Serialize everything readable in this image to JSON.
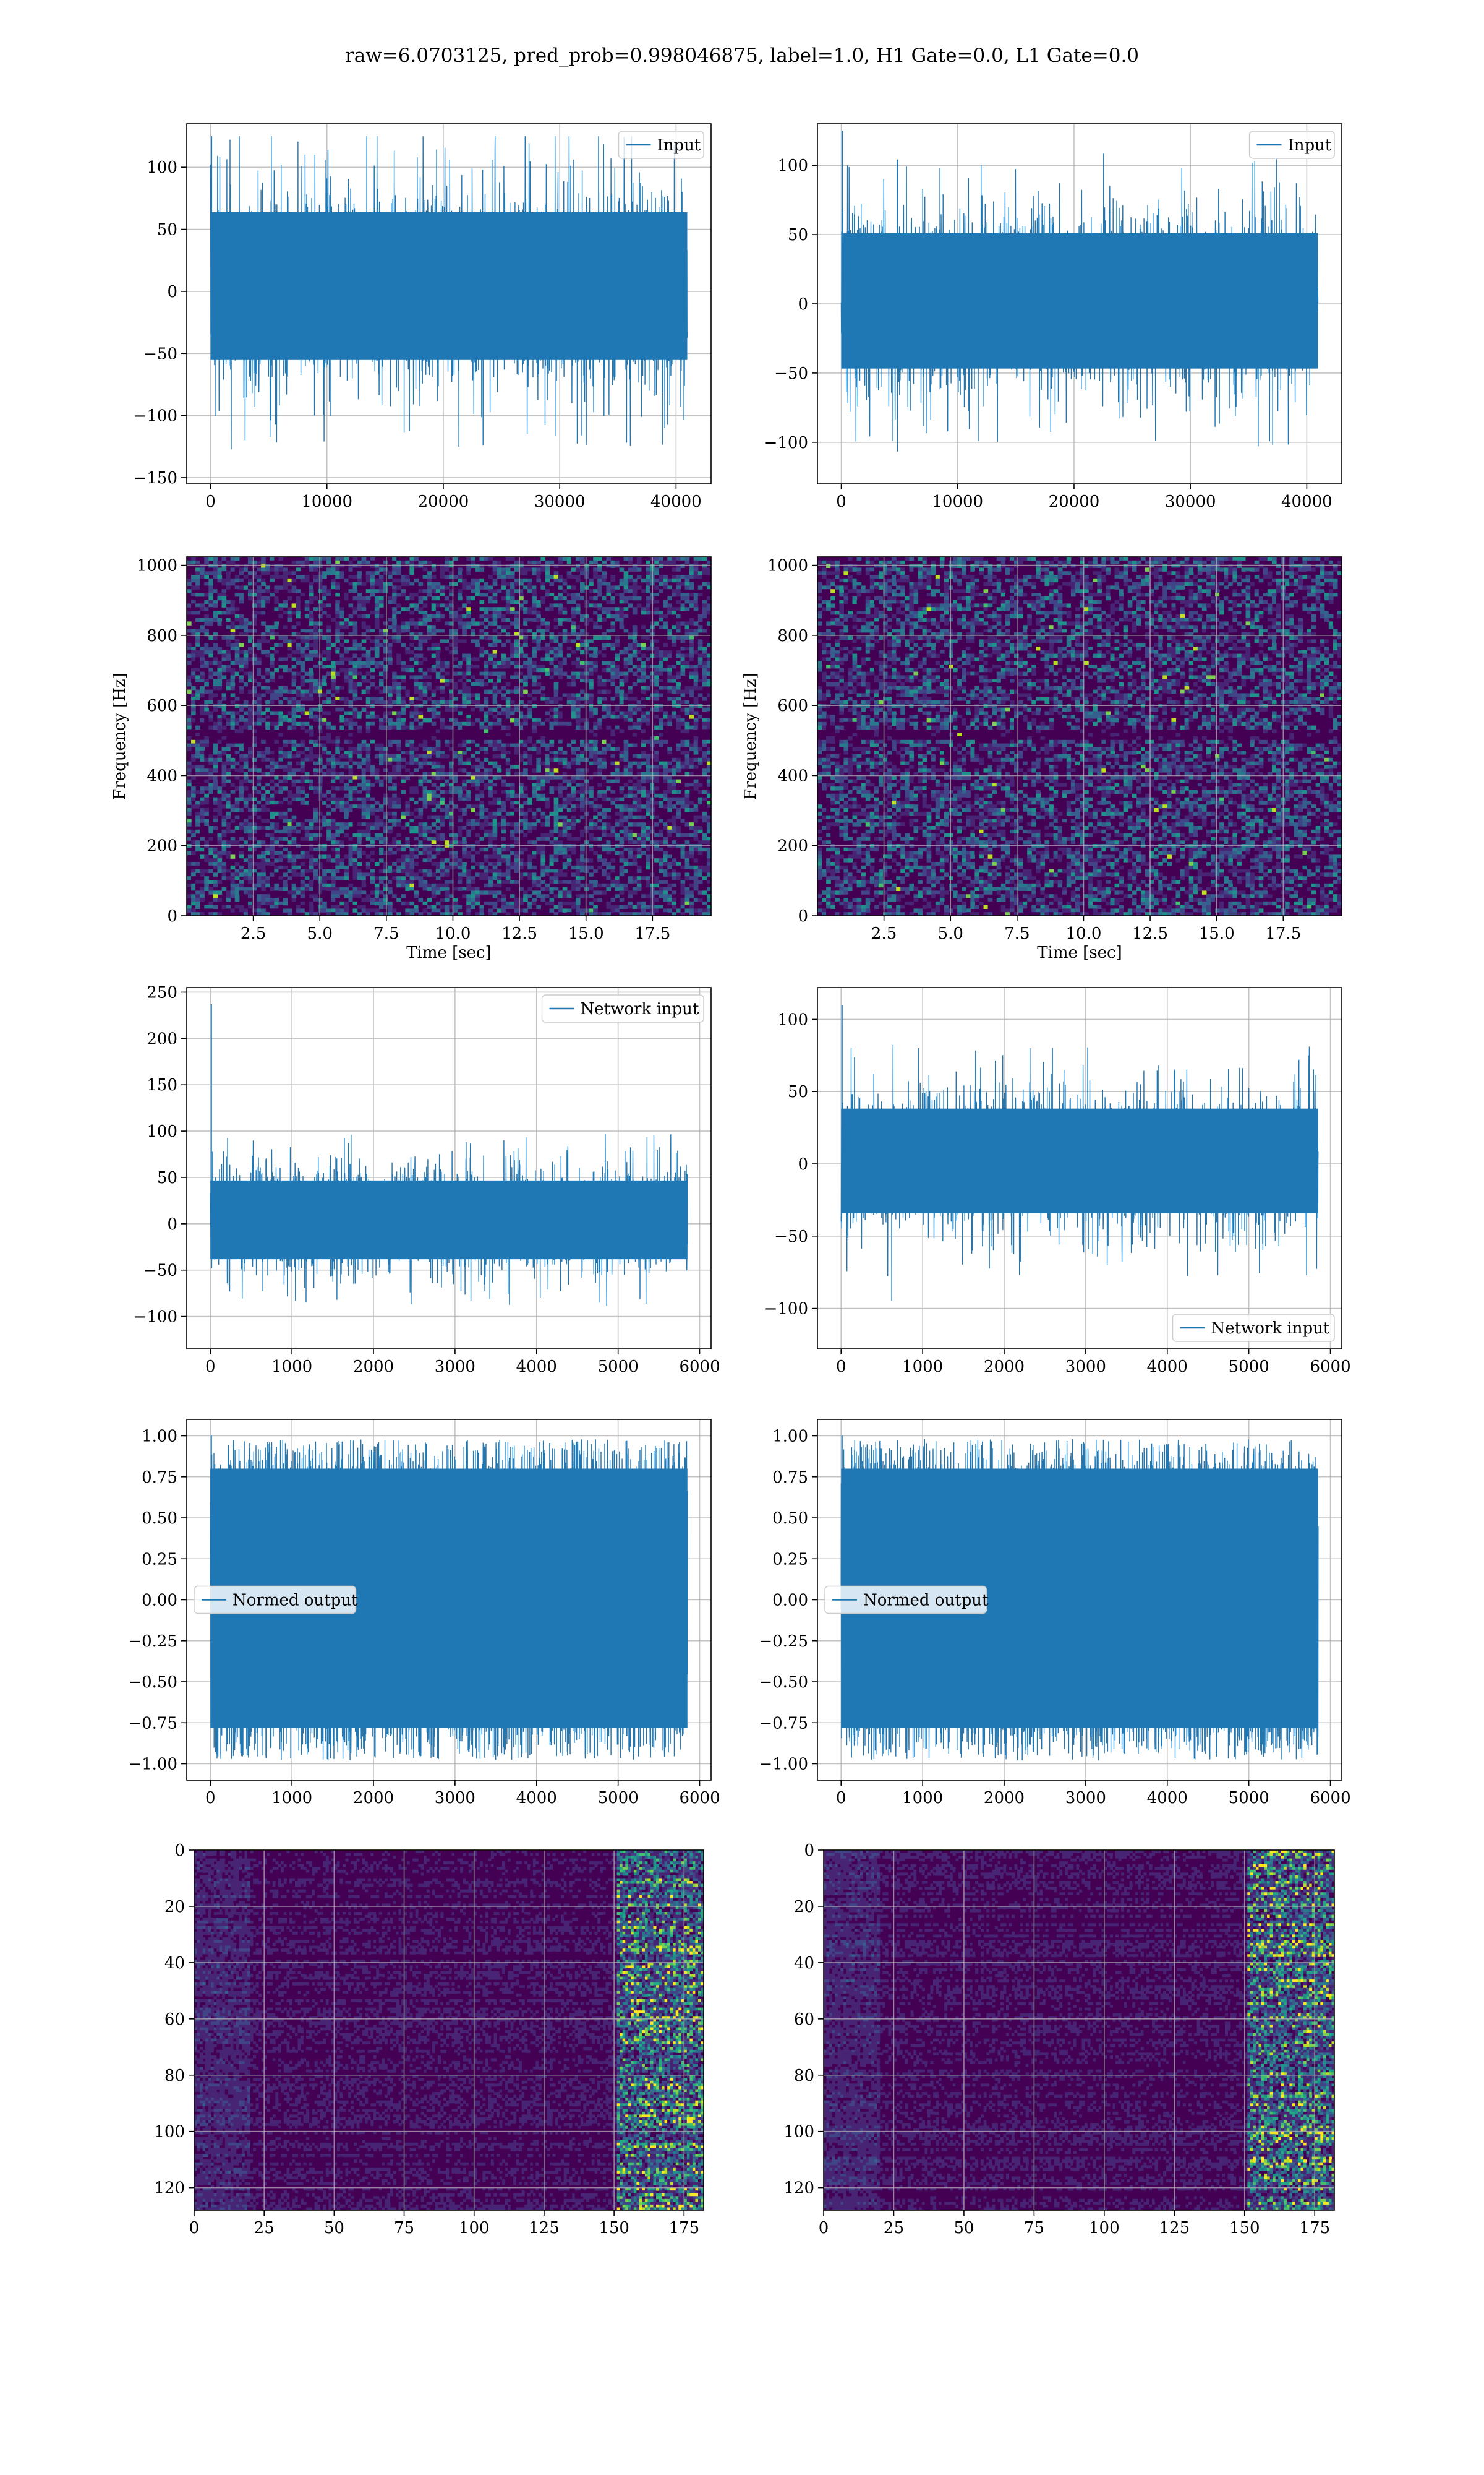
{
  "figure": {
    "suptitle": "raw=6.0703125, pred_prob=0.998046875, label=1.0, H1 Gate=0.0, L1 Gate=0.0"
  },
  "colors": {
    "line": "#1f77b4",
    "grid": "#b0b0b0",
    "viridis": [
      "#440154",
      "#482475",
      "#414487",
      "#355f8d",
      "#2a788e",
      "#21918c",
      "#22a884",
      "#44bf70",
      "#7ad151",
      "#bddf26",
      "#fde725"
    ]
  },
  "chart_data": [
    {
      "id": "input_left",
      "type": "line",
      "legend": [
        "Input"
      ],
      "legend_loc": "upper right",
      "xlim": [
        -2048,
        43008
      ],
      "ylim": [
        -155,
        135
      ],
      "xticks": [
        0,
        10000,
        20000,
        30000,
        40000
      ],
      "yticks": [
        -150,
        -100,
        -50,
        0,
        50,
        100
      ],
      "series": [
        {
          "name": "Input",
          "n_samples": 40960,
          "x_range": [
            0,
            40960
          ],
          "band": [
            -65,
            75
          ],
          "peaks": [
            -145,
            125
          ]
        }
      ],
      "grid": true
    },
    {
      "id": "input_right",
      "type": "line",
      "legend": [
        "Input"
      ],
      "legend_loc": "upper right",
      "xlim": [
        -2048,
        43008
      ],
      "ylim": [
        -130,
        130
      ],
      "xticks": [
        0,
        10000,
        20000,
        30000,
        40000
      ],
      "yticks": [
        -100,
        -50,
        0,
        50,
        100
      ],
      "series": [
        {
          "name": "Input",
          "n_samples": 40960,
          "x_range": [
            0,
            40960
          ],
          "band": [
            -55,
            60
          ],
          "peaks": [
            -115,
            125
          ]
        }
      ],
      "grid": true
    },
    {
      "id": "spectrogram_left",
      "type": "heatmap",
      "xlabel": "Time [sec]",
      "ylabel": "Frequency [Hz]",
      "xlim": [
        0,
        19.7
      ],
      "ylim": [
        0,
        1024
      ],
      "xticks": [
        2.5,
        5.0,
        7.5,
        10.0,
        12.5,
        15.0,
        17.5
      ],
      "yticks": [
        0,
        200,
        400,
        600,
        800,
        1000
      ],
      "colormap": "viridis",
      "note_band_hz": 510,
      "grid": true
    },
    {
      "id": "spectrogram_right",
      "type": "heatmap",
      "xlabel": "Time [sec]",
      "ylabel": "Frequency [Hz]",
      "xlim": [
        0,
        19.7
      ],
      "ylim": [
        0,
        1024
      ],
      "xticks": [
        2.5,
        5.0,
        7.5,
        10.0,
        12.5,
        15.0,
        17.5
      ],
      "yticks": [
        0,
        200,
        400,
        600,
        800,
        1000
      ],
      "colormap": "viridis",
      "note_band_hz": 510,
      "grid": true
    },
    {
      "id": "network_input_left",
      "type": "line",
      "legend": [
        "Network input"
      ],
      "legend_loc": "upper right",
      "xlim": [
        -290,
        6140
      ],
      "ylim": [
        -135,
        255
      ],
      "xticks": [
        0,
        1000,
        2000,
        3000,
        4000,
        5000,
        6000
      ],
      "yticks": [
        -100,
        -50,
        0,
        50,
        100,
        150,
        200,
        250
      ],
      "series": [
        {
          "name": "Network input",
          "n_samples": 5850,
          "x_range": [
            0,
            5850
          ],
          "band": [
            -45,
            55
          ],
          "peaks": [
            -115,
            237
          ]
        }
      ],
      "grid": true
    },
    {
      "id": "network_input_right",
      "type": "line",
      "legend": [
        "Network input"
      ],
      "legend_loc": "lower right",
      "xlim": [
        -290,
        6140
      ],
      "ylim": [
        -128,
        122
      ],
      "xticks": [
        0,
        1000,
        2000,
        3000,
        4000,
        5000,
        6000
      ],
      "yticks": [
        -100,
        -50,
        0,
        50,
        100
      ],
      "series": [
        {
          "name": "Network input",
          "n_samples": 5850,
          "x_range": [
            0,
            5850
          ],
          "band": [
            -40,
            45
          ],
          "peaks": [
            -117,
            110
          ]
        }
      ],
      "grid": true
    },
    {
      "id": "normed_output_left",
      "type": "line",
      "legend": [
        "Normed output"
      ],
      "legend_loc": "center left",
      "xlim": [
        -290,
        6140
      ],
      "ylim": [
        -1.1,
        1.1
      ],
      "xticks": [
        0,
        1000,
        2000,
        3000,
        4000,
        5000,
        6000
      ],
      "yticks": [
        -1.0,
        -0.75,
        -0.5,
        -0.25,
        0.0,
        0.25,
        0.5,
        0.75,
        1.0
      ],
      "series": [
        {
          "name": "Normed output",
          "n_samples": 5850,
          "x_range": [
            0,
            5850
          ],
          "band": [
            -0.7,
            0.7
          ],
          "peaks": [
            -1.0,
            1.0
          ]
        }
      ],
      "grid": true
    },
    {
      "id": "normed_output_right",
      "type": "line",
      "legend": [
        "Normed output"
      ],
      "legend_loc": "center left",
      "xlim": [
        -290,
        6140
      ],
      "ylim": [
        -1.1,
        1.1
      ],
      "xticks": [
        0,
        1000,
        2000,
        3000,
        4000,
        5000,
        6000
      ],
      "yticks": [
        -1.0,
        -0.75,
        -0.5,
        -0.25,
        0.0,
        0.25,
        0.5,
        0.75,
        1.0
      ],
      "series": [
        {
          "name": "Normed output",
          "n_samples": 5850,
          "x_range": [
            0,
            5850
          ],
          "band": [
            -0.7,
            0.7
          ],
          "peaks": [
            -1.0,
            1.0
          ]
        }
      ],
      "grid": true
    },
    {
      "id": "feature_map_left",
      "type": "heatmap",
      "xlim": [
        0,
        182
      ],
      "ylim": [
        128,
        0
      ],
      "xticks": [
        0,
        25,
        50,
        75,
        100,
        125,
        150,
        175
      ],
      "yticks": [
        0,
        20,
        40,
        60,
        80,
        100,
        120
      ],
      "colormap": "viridis",
      "shape": [
        128,
        182
      ],
      "grid": true
    },
    {
      "id": "feature_map_right",
      "type": "heatmap",
      "xlim": [
        0,
        182
      ],
      "ylim": [
        128,
        0
      ],
      "xticks": [
        0,
        25,
        50,
        75,
        100,
        125,
        150,
        175
      ],
      "yticks": [
        0,
        20,
        40,
        60,
        80,
        100,
        120
      ],
      "colormap": "viridis",
      "shape": [
        128,
        182
      ],
      "grid": true
    }
  ]
}
